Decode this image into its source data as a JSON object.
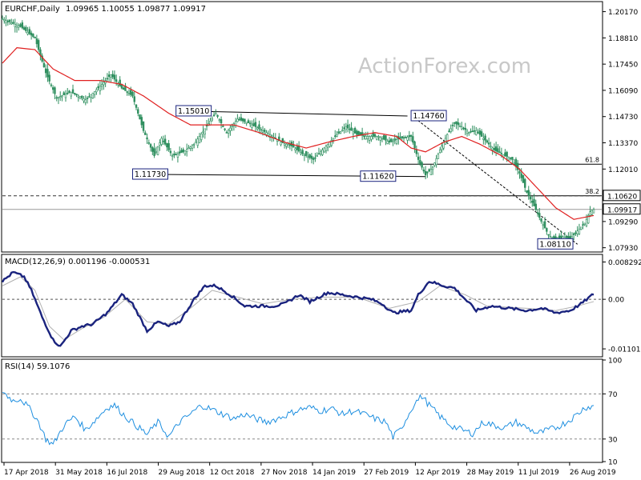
{
  "header": {
    "symbol_label": "EURCHF,Daily",
    "ohlc_label": "1.09965 1.10055 1.09877 1.09917"
  },
  "watermark": "ActionForex.com",
  "colors": {
    "candle": "#2f8f5f",
    "ma_line": "#e02020",
    "macd_line": "#1a237e",
    "signal_line": "#b0b0b0",
    "rsi_line": "#1e8fe0",
    "frame": "#000000",
    "price_box": "#1a237e"
  },
  "chart_data": [
    {
      "type": "candlestick",
      "title": "EURCHF,Daily",
      "subtitle": "1.09965 1.10055 1.09877 1.09917",
      "ylim": [
        1.0775,
        1.2065
      ],
      "y_ticks": [
        "1.20170",
        "1.18810",
        "1.17450",
        "1.16090",
        "1.14730",
        "1.13370",
        "1.12010",
        "1.09290",
        "1.07930"
      ],
      "x_ticks": [
        "17 Apr 2018",
        "31 May 2018",
        "16 Jul 2018",
        "29 Aug 2018",
        "12 Oct 2018",
        "27 Nov 2018",
        "14 Jan 2019",
        "27 Feb 2019",
        "12 Apr 2019",
        "28 May 2019",
        "11 Jul 2019",
        "26 Aug 2019"
      ],
      "close_path": [
        [
          0,
          1.198
        ],
        [
          10,
          1.194
        ],
        [
          18,
          1.188
        ],
        [
          24,
          1.17
        ],
        [
          30,
          1.157
        ],
        [
          38,
          1.16
        ],
        [
          46,
          1.156
        ],
        [
          54,
          1.163
        ],
        [
          60,
          1.169
        ],
        [
          66,
          1.162
        ],
        [
          72,
          1.158
        ],
        [
          78,
          1.14
        ],
        [
          84,
          1.127
        ],
        [
          88,
          1.136
        ],
        [
          94,
          1.127
        ],
        [
          100,
          1.129
        ],
        [
          106,
          1.133
        ],
        [
          112,
          1.141
        ],
        [
          118,
          1.149
        ],
        [
          124,
          1.139
        ],
        [
          130,
          1.146
        ],
        [
          136,
          1.144
        ],
        [
          142,
          1.141
        ],
        [
          148,
          1.138
        ],
        [
          154,
          1.134
        ],
        [
          160,
          1.132
        ],
        [
          166,
          1.128
        ],
        [
          172,
          1.125
        ],
        [
          178,
          1.131
        ],
        [
          184,
          1.137
        ],
        [
          190,
          1.142
        ],
        [
          196,
          1.138
        ],
        [
          202,
          1.137
        ],
        [
          208,
          1.137
        ],
        [
          214,
          1.134
        ],
        [
          220,
          1.136
        ],
        [
          226,
          1.137
        ],
        [
          230,
          1.125
        ],
        [
          234,
          1.117
        ],
        [
          238,
          1.121
        ],
        [
          242,
          1.13
        ],
        [
          246,
          1.138
        ],
        [
          250,
          1.144
        ],
        [
          254,
          1.142
        ],
        [
          258,
          1.139
        ],
        [
          262,
          1.14
        ],
        [
          268,
          1.134
        ],
        [
          272,
          1.13
        ],
        [
          276,
          1.128
        ],
        [
          282,
          1.125
        ],
        [
          286,
          1.118
        ],
        [
          290,
          1.108
        ],
        [
          294,
          1.101
        ],
        [
          298,
          1.093
        ],
        [
          302,
          1.086
        ],
        [
          306,
          1.083
        ],
        [
          310,
          1.085
        ],
        [
          314,
          1.084
        ],
        [
          318,
          1.088
        ],
        [
          322,
          1.092
        ],
        [
          325,
          1.098
        ],
        [
          327,
          1.09917
        ]
      ],
      "ma_path": [
        [
          0,
          1.175
        ],
        [
          8,
          1.183
        ],
        [
          18,
          1.182
        ],
        [
          28,
          1.172
        ],
        [
          40,
          1.166
        ],
        [
          54,
          1.166
        ],
        [
          66,
          1.164
        ],
        [
          78,
          1.158
        ],
        [
          92,
          1.149
        ],
        [
          104,
          1.143
        ],
        [
          116,
          1.143
        ],
        [
          128,
          1.143
        ],
        [
          142,
          1.139
        ],
        [
          156,
          1.134
        ],
        [
          168,
          1.131
        ],
        [
          180,
          1.134
        ],
        [
          194,
          1.137
        ],
        [
          206,
          1.139
        ],
        [
          218,
          1.137
        ],
        [
          226,
          1.131
        ],
        [
          234,
          1.129
        ],
        [
          244,
          1.134
        ],
        [
          254,
          1.137
        ],
        [
          264,
          1.133
        ],
        [
          276,
          1.127
        ],
        [
          286,
          1.12
        ],
        [
          296,
          1.11
        ],
        [
          306,
          1.1
        ],
        [
          316,
          1.094
        ],
        [
          327,
          1.096
        ]
      ],
      "key_levels": [
        {
          "label": "1.15010",
          "value": 1.1501
        },
        {
          "label": "1.14760",
          "value": 1.1476
        },
        {
          "label": "1.11730",
          "value": 1.1173
        },
        {
          "label": "1.11620",
          "value": 1.1162
        },
        {
          "label": "1.08110",
          "value": 1.0811
        }
      ],
      "fib_levels": [
        {
          "label": "61.8",
          "value": 1.1226
        },
        {
          "label": "38.2",
          "value": 1.1062
        }
      ],
      "price_labels": [
        {
          "label": "1.10620",
          "value": 1.1062
        },
        {
          "label": "1.09917",
          "value": 1.09917
        }
      ]
    },
    {
      "type": "line",
      "title": "MACD(12,26,9) 0.001196 -0.000531",
      "ylim": [
        -0.0126,
        0.0098
      ],
      "y_ticks": [
        "0.008292",
        "0.00",
        "-0.011015"
      ],
      "macd_path": [
        [
          0,
          0.004
        ],
        [
          6,
          0.006
        ],
        [
          12,
          0.005
        ],
        [
          16,
          0.002
        ],
        [
          22,
          -0.004
        ],
        [
          28,
          -0.009
        ],
        [
          32,
          -0.0105
        ],
        [
          38,
          -0.007
        ],
        [
          44,
          -0.006
        ],
        [
          50,
          -0.0055
        ],
        [
          58,
          -0.003
        ],
        [
          66,
          0.001
        ],
        [
          72,
          -0.001
        ],
        [
          80,
          -0.007
        ],
        [
          86,
          -0.005
        ],
        [
          92,
          -0.006
        ],
        [
          98,
          -0.005
        ],
        [
          106,
          0.0
        ],
        [
          112,
          0.003
        ],
        [
          118,
          0.003
        ],
        [
          126,
          0.001
        ],
        [
          134,
          -0.0015
        ],
        [
          142,
          -0.0015
        ],
        [
          150,
          -0.0015
        ],
        [
          156,
          -0.001
        ],
        [
          164,
          0.001
        ],
        [
          170,
          -0.0005
        ],
        [
          180,
          0.0015
        ],
        [
          188,
          0.001
        ],
        [
          196,
          0.0005
        ],
        [
          204,
          0.0
        ],
        [
          210,
          -0.001
        ],
        [
          216,
          -0.003
        ],
        [
          226,
          -0.0025
        ],
        [
          230,
          0.001
        ],
        [
          236,
          0.004
        ],
        [
          244,
          0.003
        ],
        [
          250,
          0.0025
        ],
        [
          256,
          0.0
        ],
        [
          262,
          -0.0025
        ],
        [
          270,
          -0.0015
        ],
        [
          280,
          -0.002
        ],
        [
          290,
          -0.0025
        ],
        [
          298,
          -0.002
        ],
        [
          306,
          -0.003
        ],
        [
          314,
          -0.0025
        ],
        [
          320,
          -0.001
        ],
        [
          327,
          0.0012
        ]
      ],
      "signal_path": [
        [
          0,
          0.003
        ],
        [
          10,
          0.005
        ],
        [
          18,
          0.002
        ],
        [
          26,
          -0.006
        ],
        [
          34,
          -0.009
        ],
        [
          44,
          -0.0065
        ],
        [
          56,
          -0.004
        ],
        [
          68,
          0.0
        ],
        [
          80,
          -0.005
        ],
        [
          92,
          -0.0055
        ],
        [
          104,
          -0.002
        ],
        [
          116,
          0.002
        ],
        [
          130,
          0.0005
        ],
        [
          144,
          -0.001
        ],
        [
          160,
          0.0
        ],
        [
          176,
          0.0005
        ],
        [
          196,
          0.0005
        ],
        [
          214,
          -0.002
        ],
        [
          230,
          -0.0005
        ],
        [
          242,
          0.003
        ],
        [
          256,
          0.001
        ],
        [
          268,
          -0.0015
        ],
        [
          290,
          -0.002
        ],
        [
          306,
          -0.0025
        ],
        [
          318,
          -0.0015
        ],
        [
          327,
          -0.0005
        ]
      ]
    },
    {
      "type": "line",
      "title": "RSI(14) 59.1076",
      "ylim": [
        10,
        100
      ],
      "y_ticks": [
        "100",
        "70",
        "30",
        "10"
      ],
      "rsi_path": [
        [
          0,
          72
        ],
        [
          6,
          64
        ],
        [
          10,
          66
        ],
        [
          16,
          55
        ],
        [
          20,
          45
        ],
        [
          24,
          30
        ],
        [
          28,
          25
        ],
        [
          34,
          42
        ],
        [
          40,
          50
        ],
        [
          46,
          38
        ],
        [
          52,
          48
        ],
        [
          58,
          58
        ],
        [
          62,
          60
        ],
        [
          68,
          50
        ],
        [
          74,
          42
        ],
        [
          80,
          34
        ],
        [
          86,
          45
        ],
        [
          92,
          32
        ],
        [
          98,
          45
        ],
        [
          104,
          52
        ],
        [
          110,
          60
        ],
        [
          116,
          56
        ],
        [
          122,
          52
        ],
        [
          128,
          48
        ],
        [
          134,
          52
        ],
        [
          140,
          48
        ],
        [
          146,
          45
        ],
        [
          152,
          48
        ],
        [
          158,
          52
        ],
        [
          164,
          56
        ],
        [
          170,
          58
        ],
        [
          176,
          55
        ],
        [
          182,
          57
        ],
        [
          188,
          52
        ],
        [
          194,
          55
        ],
        [
          200,
          52
        ],
        [
          206,
          48
        ],
        [
          212,
          45
        ],
        [
          216,
          32
        ],
        [
          220,
          38
        ],
        [
          224,
          50
        ],
        [
          228,
          62
        ],
        [
          232,
          68
        ],
        [
          236,
          60
        ],
        [
          242,
          50
        ],
        [
          248,
          42
        ],
        [
          254,
          38
        ],
        [
          260,
          35
        ],
        [
          266,
          45
        ],
        [
          272,
          42
        ],
        [
          278,
          40
        ],
        [
          284,
          45
        ],
        [
          290,
          40
        ],
        [
          296,
          35
        ],
        [
          300,
          37
        ],
        [
          306,
          40
        ],
        [
          312,
          45
        ],
        [
          318,
          52
        ],
        [
          322,
          58
        ],
        [
          327,
          59
        ]
      ]
    }
  ]
}
